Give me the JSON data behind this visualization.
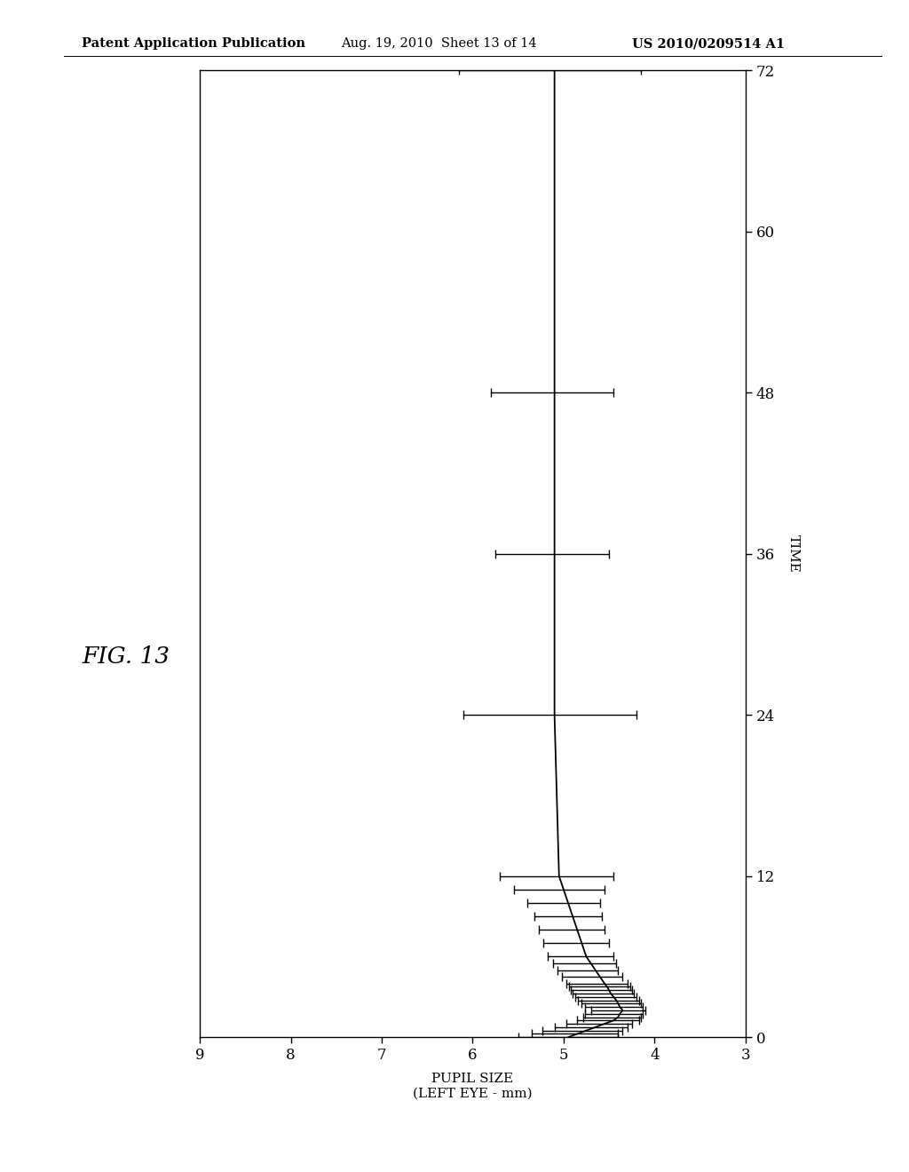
{
  "header_left": "Patent Application Publication",
  "header_mid": "Aug. 19, 2010  Sheet 13 of 14",
  "header_right": "US 2010/0209514 A1",
  "fig_label": "FIG. 13",
  "xlabel": "PUPIL SIZE\n(LEFT EYE - mm)",
  "ylabel": "TIME",
  "xlim_left": 9,
  "xlim_right": 3,
  "ylim": [
    0,
    72
  ],
  "xticks": [
    3,
    4,
    5,
    6,
    7,
    8,
    9
  ],
  "yticks": [
    0,
    12,
    24,
    36,
    48,
    60,
    72
  ],
  "time_points": [
    0,
    0.25,
    0.5,
    0.75,
    1.0,
    1.25,
    1.5,
    1.75,
    2.0,
    2.25,
    2.5,
    2.75,
    3.0,
    3.25,
    3.5,
    3.75,
    4.0,
    4.5,
    5.0,
    5.5,
    6.0,
    7.0,
    8.0,
    9.0,
    10.0,
    11.0,
    12.0,
    24.0,
    36.0,
    48.0,
    72.0
  ],
  "mean_values": [
    4.95,
    4.85,
    4.75,
    4.65,
    4.55,
    4.45,
    4.4,
    4.38,
    4.35,
    4.38,
    4.4,
    4.42,
    4.45,
    4.48,
    4.5,
    4.52,
    4.55,
    4.6,
    4.65,
    4.7,
    4.75,
    4.8,
    4.85,
    4.9,
    4.95,
    5.0,
    5.05,
    5.1,
    5.1,
    5.1,
    5.1
  ],
  "err_low": [
    0.55,
    0.45,
    0.4,
    0.35,
    0.3,
    0.28,
    0.25,
    0.25,
    0.25,
    0.25,
    0.25,
    0.25,
    0.25,
    0.25,
    0.25,
    0.25,
    0.25,
    0.25,
    0.25,
    0.28,
    0.3,
    0.3,
    0.3,
    0.32,
    0.35,
    0.45,
    0.6,
    0.9,
    0.6,
    0.65,
    0.95
  ],
  "err_high": [
    0.55,
    0.5,
    0.48,
    0.45,
    0.42,
    0.4,
    0.38,
    0.38,
    0.35,
    0.38,
    0.4,
    0.42,
    0.42,
    0.42,
    0.42,
    0.42,
    0.42,
    0.42,
    0.42,
    0.42,
    0.42,
    0.42,
    0.42,
    0.42,
    0.45,
    0.55,
    0.65,
    1.0,
    0.65,
    0.7,
    1.05
  ],
  "background_color": "#ffffff",
  "line_color": "#000000",
  "text_color": "#000000"
}
